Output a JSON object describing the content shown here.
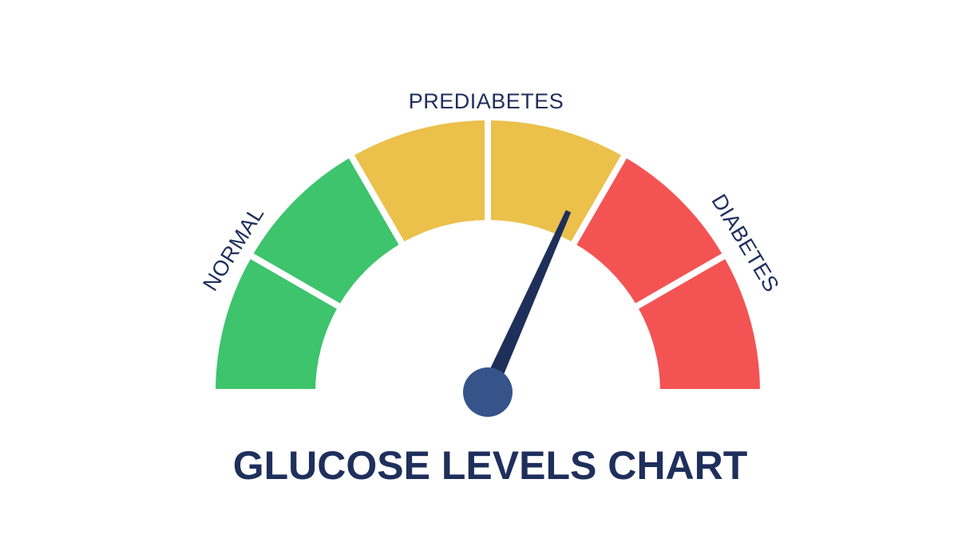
{
  "gauge": {
    "labels": {
      "left": "NORMAL",
      "top": "PREDIABETES",
      "right": "DIABETES"
    }
  },
  "title": "GLUCOSE LEVELS CHART"
}
